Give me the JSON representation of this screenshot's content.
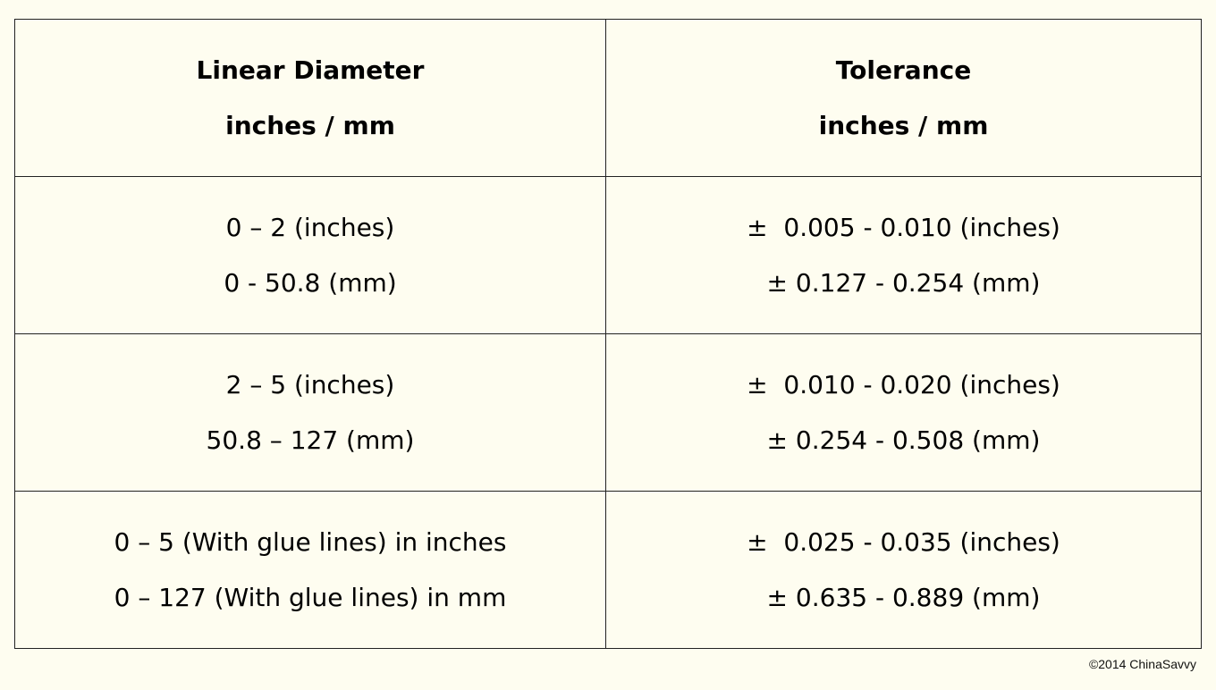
{
  "table": {
    "headers": [
      {
        "line1": "Linear Diameter",
        "line2": "inches / mm"
      },
      {
        "line1": "Tolerance",
        "line2": "inches / mm"
      }
    ],
    "rows": [
      {
        "diameter": {
          "line1": "0 – 2 (inches)",
          "line2": "0 - 50.8 (mm)"
        },
        "tolerance": {
          "line1": "±  0.005 - 0.010 (inches)",
          "line2": "± 0.127 - 0.254 (mm)"
        }
      },
      {
        "diameter": {
          "line1": "2 – 5 (inches)",
          "line2": "50.8 – 127 (mm)"
        },
        "tolerance": {
          "line1": "±  0.010 - 0.020 (inches)",
          "line2": "± 0.254 - 0.508 (mm)"
        }
      },
      {
        "diameter": {
          "line1": "0 – 5 (With glue lines) in inches",
          "line2": "0 – 127 (With glue lines) in mm"
        },
        "tolerance": {
          "line1": "±  0.025 - 0.035 (inches)",
          "line2": "± 0.635 - 0.889 (mm)"
        }
      }
    ]
  },
  "footer": {
    "copyright": "©2014 ChinaSavvy"
  }
}
